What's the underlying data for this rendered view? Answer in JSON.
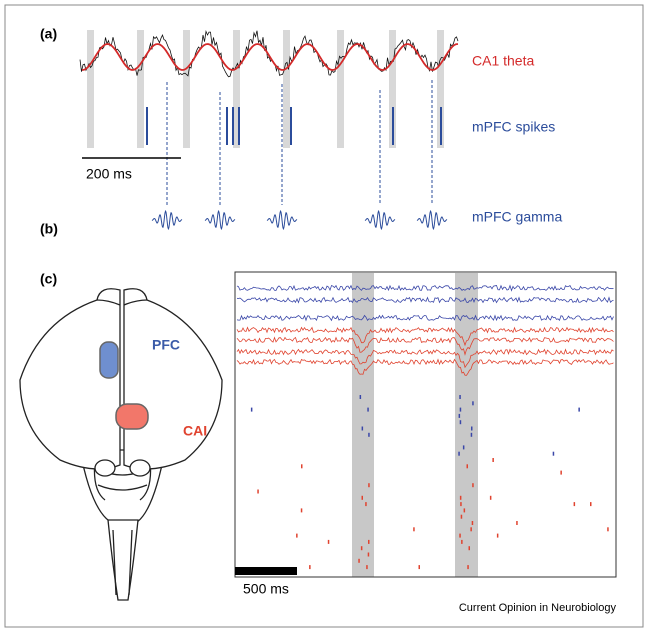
{
  "panel_a": {
    "label": "(a)",
    "theta_label": "CA1 theta",
    "spikes_label": "mPFC spikes",
    "scale_label": "200 ms"
  },
  "panel_b": {
    "label": "(b)",
    "gamma_label": "mPFC gamma"
  },
  "panel_c": {
    "label": "(c)",
    "pfc_label": "PFC",
    "ca1_label": "CAI",
    "scale_label": "500 ms"
  },
  "footer": "Current Opinion in Neurobiology"
}
